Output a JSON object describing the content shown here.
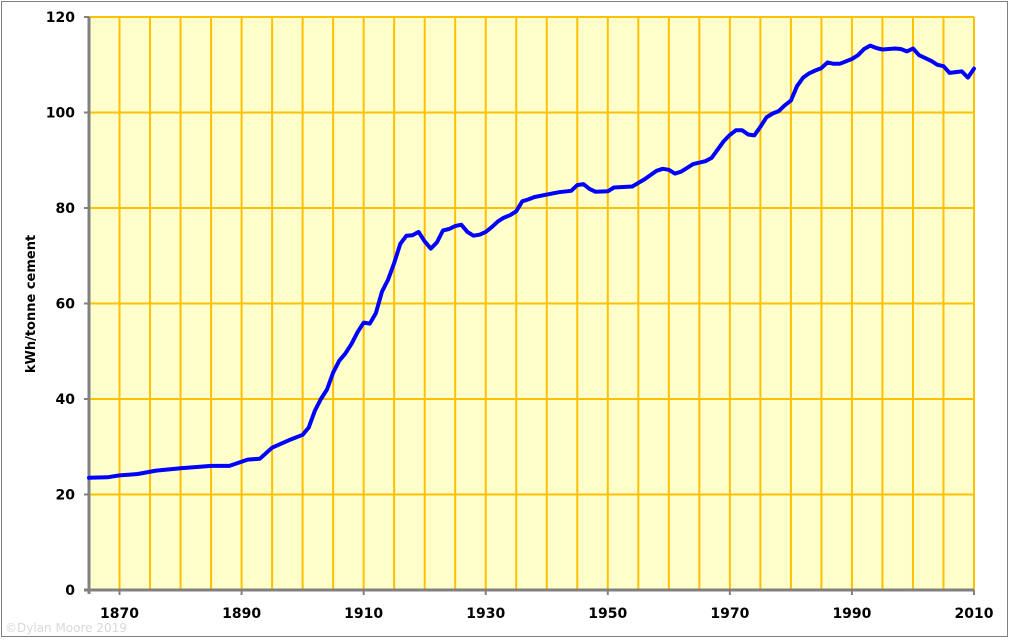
{
  "chart_data": {
    "type": "line",
    "title": "",
    "xlabel": "",
    "ylabel": "kWh/tonne cement",
    "xlim": [
      1865,
      2010
    ],
    "ylim": [
      0,
      120
    ],
    "x_ticks": [
      1870,
      1890,
      1910,
      1930,
      1950,
      1970,
      1990,
      2010
    ],
    "y_ticks": [
      0,
      20,
      40,
      60,
      80,
      100,
      120
    ],
    "grid": true,
    "colors": {
      "background": "#FFFFCC",
      "grid": "#FFC000",
      "line": "#0000FF",
      "axis": "#808080"
    },
    "series": [
      {
        "x": [
          1865,
          1868,
          1870,
          1873,
          1876,
          1880,
          1885,
          1888,
          1891,
          1893,
          1895,
          1898,
          1900,
          1901,
          1902,
          1903,
          1904,
          1905,
          1906,
          1907,
          1908,
          1909,
          1910,
          1911,
          1912,
          1913,
          1914,
          1915,
          1916,
          1917,
          1918,
          1919,
          1920,
          1921,
          1922,
          1923,
          1924,
          1925,
          1926,
          1927,
          1928,
          1929,
          1930,
          1931,
          1932,
          1933,
          1934,
          1935,
          1936,
          1937,
          1938,
          1940,
          1942,
          1944,
          1945,
          1946,
          1947,
          1948,
          1950,
          1951,
          1954,
          1956,
          1958,
          1959,
          1960,
          1961,
          1962,
          1964,
          1966,
          1967,
          1969,
          1970,
          1971,
          1972,
          1973,
          1974,
          1975,
          1976,
          1977,
          1978,
          1979,
          1980,
          1981,
          1982,
          1983,
          1984,
          1985,
          1986,
          1987,
          1988,
          1990,
          1991,
          1992,
          1993,
          1994,
          1995,
          1997,
          1998,
          1999,
          2000,
          2001,
          2003,
          2004,
          2005,
          2006,
          2008,
          2009,
          2010
        ],
        "y": [
          23.5,
          23.6,
          24,
          24.3,
          25,
          25.5,
          26,
          26,
          27.3,
          27.5,
          29.8,
          31.5,
          32.5,
          34,
          37.5,
          40,
          42,
          45.5,
          48,
          49.5,
          51.5,
          54,
          56,
          55.8,
          58,
          62.5,
          65,
          68.5,
          72.5,
          74.2,
          74.3,
          75,
          73,
          71.5,
          72.8,
          75.3,
          75.6,
          76.2,
          76.5,
          75,
          74.2,
          74.4,
          75,
          76,
          77.2,
          78,
          78.5,
          79.3,
          81.4,
          81.8,
          82.3,
          82.8,
          83.3,
          83.6,
          84.8,
          85,
          84,
          83.4,
          83.5,
          84.3,
          84.5,
          86,
          87.8,
          88.2,
          88,
          87.2,
          87.6,
          89.2,
          89.8,
          90.5,
          94,
          95.3,
          96.3,
          96.3,
          95.4,
          95.2,
          97,
          99,
          99.8,
          100.3,
          101.5,
          102.5,
          105.5,
          107.3,
          108.2,
          108.8,
          109.3,
          110.5,
          110.2,
          110.2,
          111.2,
          112,
          113.3,
          114,
          113.5,
          113.2,
          113.4,
          113.3,
          112.8,
          113.4,
          112,
          110.8,
          110,
          109.7,
          108.3,
          108.6,
          107.3,
          109.2
        ]
      }
    ]
  },
  "credit": "©Dylan Moore 2019"
}
